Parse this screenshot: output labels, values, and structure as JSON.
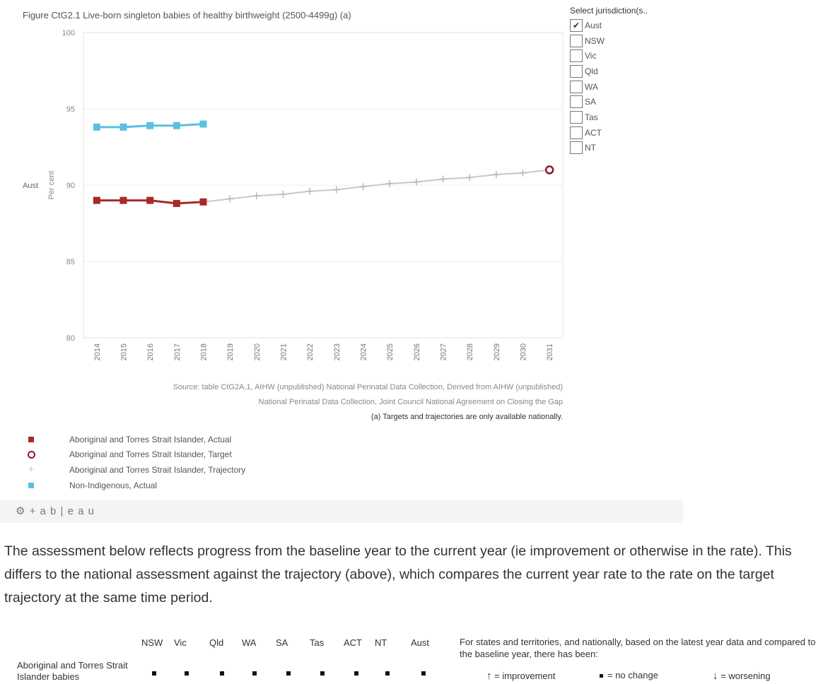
{
  "figure_title": "Figure CtG2.1 Live-born singleton babies of healthy birthweight (2500-4499g) (a)",
  "filter": {
    "title": "Select jurisdiction(s..",
    "options": [
      {
        "label": "Aust",
        "checked": true
      },
      {
        "label": "NSW",
        "checked": false
      },
      {
        "label": "Vic",
        "checked": false
      },
      {
        "label": "Qld",
        "checked": false
      },
      {
        "label": "WA",
        "checked": false
      },
      {
        "label": "SA",
        "checked": false
      },
      {
        "label": "Tas",
        "checked": false
      },
      {
        "label": "ACT",
        "checked": false
      },
      {
        "label": "NT",
        "checked": false
      }
    ],
    "check_mark": "✔"
  },
  "chart_data": {
    "type": "line",
    "row_label": "Aust",
    "ylabel": "Per cent",
    "xlabel": "",
    "ylim": [
      80,
      100
    ],
    "y_ticks": [
      80,
      85,
      90,
      95,
      100
    ],
    "x_categories": [
      "2014",
      "2015",
      "2016",
      "2017",
      "2018",
      "2019",
      "2020",
      "2021",
      "2022",
      "2023",
      "2024",
      "2025",
      "2026",
      "2027",
      "2028",
      "2029",
      "2030",
      "2031"
    ],
    "gridlines": true,
    "series": [
      {
        "name": "Aboriginal and Torres Strait Islander, Actual",
        "color": "#a52a2a",
        "marker": "square",
        "x": [
          "2014",
          "2015",
          "2016",
          "2017",
          "2018"
        ],
        "values": [
          89.0,
          89.0,
          89.0,
          88.8,
          88.9
        ]
      },
      {
        "name": "Aboriginal and Torres Strait Islander, Target",
        "color": "#8b1a2b",
        "marker": "circle",
        "x": [
          "2031"
        ],
        "values": [
          91.0
        ]
      },
      {
        "name": "Aboriginal and Torres Strait Islander, Trajectory",
        "color": "#c8c8c8",
        "marker": "plus",
        "x": [
          "2018",
          "2019",
          "2020",
          "2021",
          "2022",
          "2023",
          "2024",
          "2025",
          "2026",
          "2027",
          "2028",
          "2029",
          "2030",
          "2031"
        ],
        "values": [
          88.9,
          89.1,
          89.3,
          89.4,
          89.6,
          89.7,
          89.9,
          90.1,
          90.2,
          90.4,
          90.5,
          90.7,
          90.8,
          91.0
        ]
      },
      {
        "name": "Non-Indigenous, Actual",
        "color": "#5bc0de",
        "marker": "square",
        "x": [
          "2014",
          "2015",
          "2016",
          "2017",
          "2018"
        ],
        "values": [
          93.8,
          93.8,
          93.9,
          93.9,
          94.0
        ]
      }
    ],
    "legend_position": "bottom-left"
  },
  "source": {
    "label": "Source",
    "line1": ": table CtG2A.1, AIHW (unpublished) National Perinatal Data Collection, Derived from AIHW (unpublished)",
    "line2": "National Perinatal Data Collection, Joint Council National Agreement on Closing the Gap",
    "footnote": "(a) Targets and trajectories are only available nationally."
  },
  "legend": [
    {
      "label": "Aboriginal and Torres Strait Islander, Actual",
      "marker": "square",
      "color": "#a52a2a"
    },
    {
      "label": "Aboriginal and Torres Strait Islander, Target",
      "marker": "circle",
      "color": "#8b1a2b"
    },
    {
      "label": "Aboriginal and Torres Strait Islander, Trajectory",
      "marker": "plus",
      "color": "#c8c8c8"
    },
    {
      "label": "Non-Indigenous, Actual",
      "marker": "square",
      "color": "#5bc0de"
    }
  ],
  "tableau_logo": "⚙ + a b | e a u",
  "paragraph": "The assessment below reflects progress from the baseline year to the current year (ie improvement or otherwise in the rate). This differs to the national assessment against the trajectory (above), which compares the current year rate to the rate on the target trajectory at the same time period.",
  "assessment": {
    "columns": [
      "NSW",
      "Vic",
      "Qld",
      "WA",
      "SA",
      "Tas",
      "ACT",
      "NT",
      "Aust"
    ],
    "row_label": "Aboriginal and Torres Strait Islander babies",
    "row_values": [
      "no change",
      "no change",
      "no change",
      "no change",
      "no change",
      "no change",
      "no change",
      "no change",
      "no change"
    ]
  },
  "assessment_note": "For states and territories, and nationally, based on the latest year data and compared to the baseline year, there has been:",
  "assessment_legend": {
    "improvement": "= improvement",
    "no_change": "= no change",
    "worsening": "= worsening",
    "improvement_icon": "↑",
    "worsening_icon": "↓"
  }
}
